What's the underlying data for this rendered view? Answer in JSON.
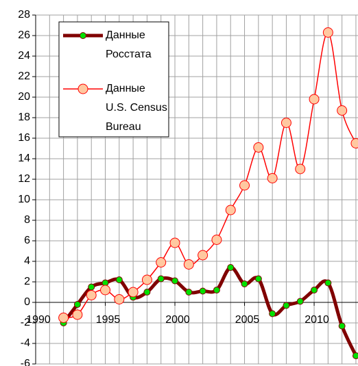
{
  "chart_data": {
    "type": "line",
    "x": [
      1992,
      1993,
      1994,
      1995,
      1996,
      1997,
      1998,
      1999,
      2000,
      2001,
      2002,
      2003,
      2004,
      2005,
      2006,
      2007,
      2008,
      2009,
      2010,
      2011,
      2012,
      2013
    ],
    "series": [
      {
        "name": "Данные Росстата",
        "color": "#800000",
        "marker_color": "#00e000",
        "values": [
          -2,
          -0.2,
          1.5,
          1.9,
          2.2,
          0.5,
          1.0,
          2.3,
          2.1,
          1.0,
          1.1,
          1.2,
          3.4,
          1.8,
          2.3,
          -1.1,
          -0.3,
          0.1,
          1.2,
          1.9,
          -2.3,
          -5.2
        ]
      },
      {
        "name": "Данные U.S. Census Bureau",
        "color": "#ff0000",
        "marker_color": "#ffc8a0",
        "values": [
          -1.5,
          -1.2,
          0.7,
          1.2,
          0.3,
          1.0,
          2.2,
          3.9,
          5.8,
          3.7,
          4.6,
          6.1,
          9.0,
          11.4,
          15.1,
          12.1,
          17.5,
          13.0,
          19.8,
          26.3,
          18.7,
          15.5
        ]
      }
    ],
    "xlim": [
      1990,
      2013.15
    ],
    "xticks": [
      1990,
      1995,
      2000,
      2005,
      2010
    ],
    "xgrid": [
      1990,
      1991,
      1992,
      1993,
      1994,
      1995,
      1996,
      1997,
      1998,
      1999,
      2000,
      2001,
      2002,
      2003,
      2004,
      2005,
      2006,
      2007,
      2008,
      2009,
      2010,
      2011,
      2012,
      2013
    ],
    "ylim": [
      -6,
      28
    ],
    "yticks": [
      -6,
      -4,
      -2,
      0,
      2,
      4,
      6,
      8,
      10,
      12,
      14,
      16,
      18,
      20,
      22,
      24,
      26,
      28
    ],
    "grid": true,
    "legend": "upper left"
  }
}
